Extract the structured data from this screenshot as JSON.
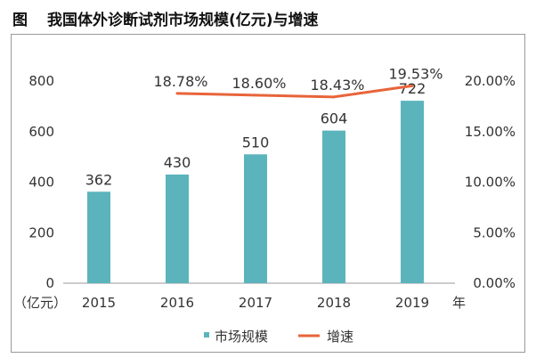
{
  "figure": {
    "label": "图",
    "title": "我国体外诊断试剂市场规模(亿元)与增速"
  },
  "chart_data": {
    "type": "bar",
    "categories": [
      "2015",
      "2016",
      "2017",
      "2018",
      "2019"
    ],
    "series": [
      {
        "name": "市场规模",
        "type": "bar",
        "axis": "left",
        "values": [
          362,
          430,
          510,
          604,
          722
        ],
        "labels": [
          "362",
          "430",
          "510",
          "604",
          "722"
        ],
        "color": "#5bb4bc"
      },
      {
        "name": "增速",
        "type": "line",
        "axis": "right",
        "x": [
          "2016",
          "2017",
          "2018",
          "2019"
        ],
        "values": [
          18.78,
          18.6,
          18.43,
          19.53
        ],
        "labels": [
          "18.78%",
          "18.60%",
          "18.43%",
          "19.53%"
        ],
        "color": "#e8643a"
      }
    ],
    "left_axis": {
      "unit_label": "（亿元）",
      "ticks": [
        "0",
        "200",
        "400",
        "600",
        "800"
      ],
      "ylim": [
        0,
        800
      ]
    },
    "right_axis": {
      "ticks": [
        "0.00%",
        "5.00%",
        "10.00%",
        "15.00%",
        "20.00%"
      ],
      "ylim": [
        0,
        20
      ]
    },
    "x_unit_label": "年",
    "legend_position": "bottom",
    "grid": false
  }
}
